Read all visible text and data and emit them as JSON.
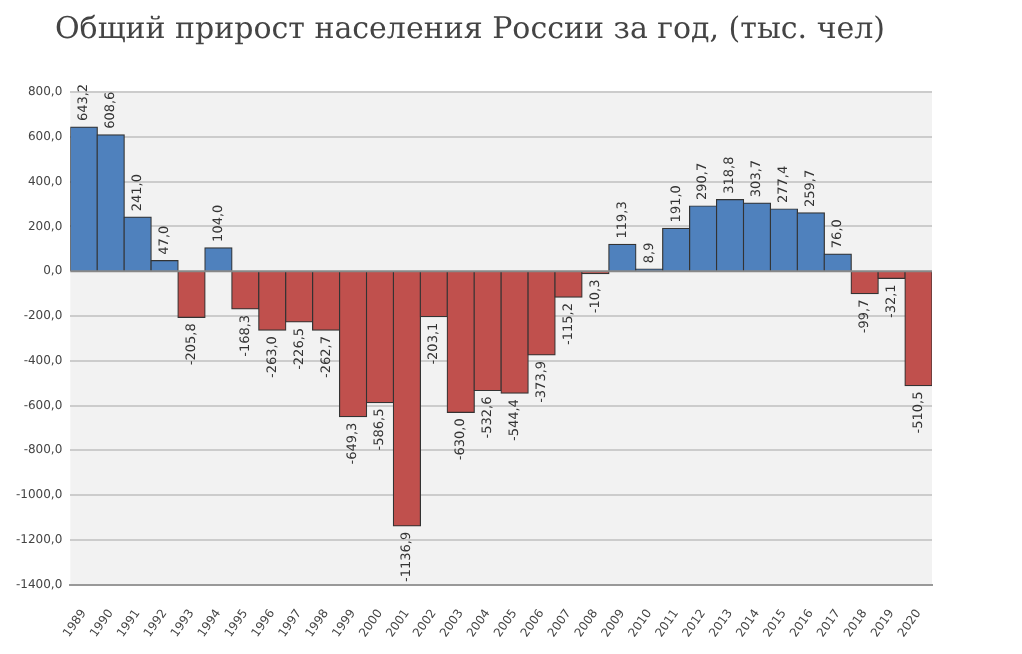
{
  "chart_data": {
    "type": "bar",
    "title": "Общий прирост населения России за год, (тыс. чел)",
    "categories": [
      "1989",
      "1990",
      "1991",
      "1992",
      "1993",
      "1994",
      "1995",
      "1996",
      "1997",
      "1998",
      "1999",
      "2000",
      "2001",
      "2002",
      "2003",
      "2004",
      "2005",
      "2006",
      "2007",
      "2008",
      "2009",
      "2010",
      "2011",
      "2012",
      "2013",
      "2014",
      "2015",
      "2016",
      "2017",
      "2018",
      "2019",
      "2020"
    ],
    "values": [
      643.2,
      608.6,
      241.0,
      47.0,
      -205.8,
      104.0,
      -168.3,
      -263.0,
      -226.5,
      -262.7,
      -649.3,
      -586.5,
      -1136.9,
      -203.1,
      -630.0,
      -532.6,
      -544.4,
      -373.9,
      -115.2,
      -10.3,
      119.3,
      8.9,
      191.0,
      290.7,
      318.8,
      303.7,
      277.4,
      259.7,
      76.0,
      -99.7,
      -32.1,
      -510.5
    ],
    "colors": [
      "#4f81bd",
      "#4f81bd",
      "#4f81bd",
      "#4f81bd",
      "#c0504d",
      "#4f81bd",
      "#c0504d",
      "#c0504d",
      "#c0504d",
      "#c0504d",
      "#c0504d",
      "#c0504d",
      "#c0504d",
      "#c0504d",
      "#c0504d",
      "#c0504d",
      "#c0504d",
      "#c0504d",
      "#c0504d",
      "#c0504d",
      "#4f81bd",
      "#4f81bd",
      "#4f81bd",
      "#4f81bd",
      "#4f81bd",
      "#4f81bd",
      "#4f81bd",
      "#4f81bd",
      "#4f81bd",
      "#c0504d",
      "#c0504d",
      "#c0504d"
    ],
    "value_labels": [
      "643,2",
      "608,6",
      "241,0",
      "47,0",
      "-205,8",
      "104,0",
      "-168,3",
      "-263,0",
      "-226,5",
      "-262,7",
      "-649,3",
      "-586,5",
      "-1136,9",
      "-203,1",
      "-630,0",
      "-532,6",
      "-544,4",
      "-373,9",
      "-115,2",
      "-10,3",
      "119,3",
      "8,9",
      "191,0",
      "290,7",
      "318,8",
      "303,7",
      "277,4",
      "259,7",
      "76,0",
      "-99,7",
      "-32,1",
      "-510,5"
    ],
    "ylim": [
      -1400,
      800
    ],
    "yticks": [
      {
        "value": -1400,
        "label": "-1400,0"
      },
      {
        "value": -1200,
        "label": "-1200,0"
      },
      {
        "value": -1000,
        "label": "-1000,0"
      },
      {
        "value": -800,
        "label": "-800,0"
      },
      {
        "value": -600,
        "label": "-600,0"
      },
      {
        "value": -400,
        "label": "-400,0"
      },
      {
        "value": -200,
        "label": "-200,0"
      },
      {
        "value": 0,
        "label": "0,0"
      },
      {
        "value": 200,
        "label": "200,0"
      },
      {
        "value": 400,
        "label": "400,0"
      },
      {
        "value": 600,
        "label": "600,0"
      },
      {
        "value": 800,
        "label": "800,0"
      }
    ],
    "grid": "y",
    "legend": false
  }
}
